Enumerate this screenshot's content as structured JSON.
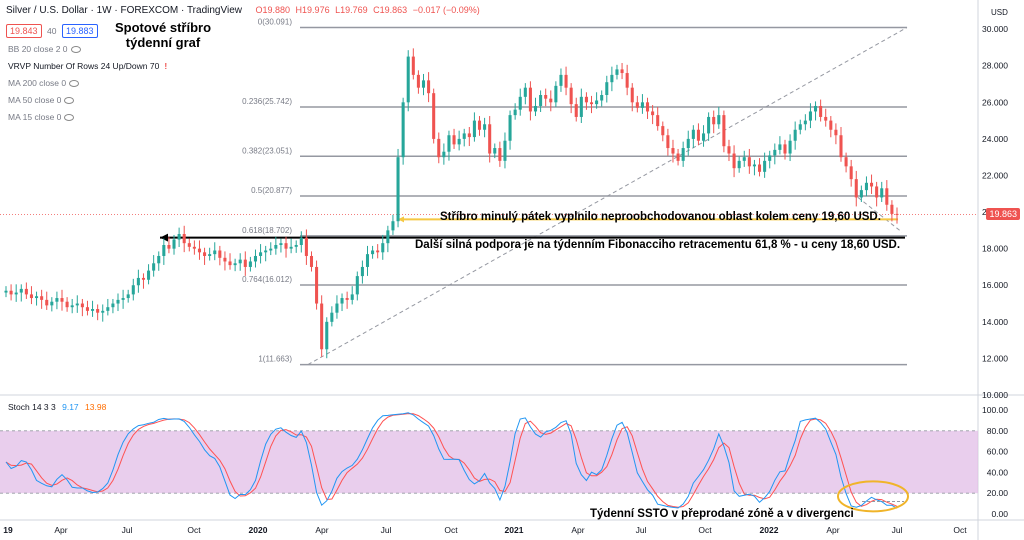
{
  "header": {
    "symbol": "Silver / U.S. Dollar · 1W · FOREXCOM · TradingView",
    "ohlc": {
      "o": "O19.880",
      "h": "H19.976",
      "l": "L19.769",
      "c": "C19.863",
      "chg": "−0.017 (−0.09%)"
    },
    "bid": "19.843",
    "spread": "40",
    "ask": "19.883",
    "currency": "USD"
  },
  "title": {
    "line1": "Spotové stříbro",
    "line2": "týdenní graf"
  },
  "indicators": [
    {
      "label": "BB 20 close 2 0"
    },
    {
      "label": "VRVP Number Of Rows 24 Up/Down 70"
    },
    {
      "label": "MA 200 close 0"
    },
    {
      "label": "MA 50 close 0"
    },
    {
      "label": "MA 15 close 0"
    }
  ],
  "annotations": {
    "fill": "Stříbro minulý pátek vyplnilo neproobchodovanou oblast kolem ceny 19,60 USD.",
    "support": "Další silná podpora je na týdenním Fibonacciho retracementu 61,8 % - u ceny 18,60 USD.",
    "ssto": "Týdenní SSTO v přeprodané zóně a v divergenci"
  },
  "stoch_label": {
    "name": "Stoch 14 3 3",
    "k": "9.17",
    "d": "13.98"
  },
  "last_price_label": "19.863",
  "colors": {
    "up": "#26a69a",
    "down": "#ef5350",
    "stoch_k": "#2196f3",
    "stoch_d": "#ff5252",
    "fib": "#9598a1",
    "band": "#e1bee7",
    "highlight": "#f5c842"
  },
  "chart_data": {
    "type": "candlestick",
    "x_ticks": [
      "19",
      "Apr",
      "Jul",
      "Oct",
      "2020",
      "Apr",
      "Jul",
      "Oct",
      "2021",
      "Apr",
      "Jul",
      "Oct",
      "2022",
      "Apr",
      "Jul",
      "Oct"
    ],
    "price_axis": {
      "ylim": [
        10,
        30.5
      ],
      "ticks": [
        "30.000",
        "28.000",
        "26.000",
        "24.000",
        "22.000",
        "20.000",
        "18.000",
        "16.000",
        "14.000",
        "12.000",
        "10.000"
      ]
    },
    "fib_levels": [
      {
        "label": "0(30.091)",
        "value": 30.091
      },
      {
        "label": "0.236(25.742)",
        "value": 25.742
      },
      {
        "label": "0.382(23.051)",
        "value": 23.051
      },
      {
        "label": "0.5(20.877)",
        "value": 20.877
      },
      {
        "label": "0.618(18.702)",
        "value": 18.702
      },
      {
        "label": "0.764(16.012)",
        "value": 16.012
      },
      {
        "label": "1(11.663)",
        "value": 11.663
      }
    ],
    "closes": [
      15.7,
      15.5,
      15.6,
      15.8,
      15.5,
      15.3,
      15.4,
      15.2,
      14.9,
      15.1,
      15.3,
      15.1,
      14.8,
      14.9,
      15.0,
      14.8,
      14.6,
      14.7,
      14.5,
      14.6,
      14.8,
      15.0,
      15.2,
      15.3,
      15.5,
      16.0,
      16.4,
      16.3,
      16.8,
      17.2,
      17.6,
      18.2,
      18.0,
      18.5,
      18.8,
      18.3,
      18.1,
      18.0,
      17.8,
      17.6,
      17.7,
      17.9,
      17.5,
      17.3,
      17.1,
      17.2,
      17.4,
      17.0,
      17.3,
      17.6,
      17.8,
      17.9,
      18.0,
      18.2,
      18.3,
      18.0,
      18.1,
      18.2,
      18.6,
      17.6,
      17.0,
      15.0,
      12.5,
      14.0,
      14.5,
      15.0,
      15.3,
      15.2,
      15.5,
      16.5,
      17.0,
      17.7,
      17.9,
      17.8,
      18.3,
      19.0,
      19.5,
      23.0,
      26.0,
      28.5,
      27.5,
      26.8,
      27.2,
      26.5,
      24.0,
      23.0,
      23.3,
      24.2,
      23.7,
      24.0,
      24.3,
      24.1,
      25.0,
      24.5,
      24.8,
      23.2,
      23.5,
      22.8,
      23.9,
      25.3,
      25.6,
      26.3,
      26.8,
      25.5,
      25.8,
      26.4,
      26.2,
      26.0,
      26.9,
      27.5,
      26.8,
      25.9,
      25.2,
      26.3,
      26.0,
      25.9,
      26.1,
      26.4,
      27.1,
      27.5,
      27.8,
      27.6,
      26.8,
      26.0,
      25.7,
      26.0,
      25.5,
      25.3,
      24.7,
      24.2,
      23.5,
      23.2,
      22.8,
      23.5,
      24.0,
      24.5,
      23.9,
      24.3,
      25.2,
      24.8,
      25.3,
      23.6,
      23.2,
      22.4,
      22.8,
      23.0,
      22.5,
      22.6,
      22.2,
      22.8,
      23.1,
      23.4,
      23.7,
      23.2,
      23.9,
      24.5,
      24.8,
      25.0,
      25.5,
      25.8,
      25.2,
      25.0,
      24.5,
      24.2,
      23.0,
      22.5,
      21.8,
      20.8,
      21.2,
      21.6,
      21.4,
      20.8,
      21.3,
      20.4,
      19.9,
      19.86
    ]
  }
}
